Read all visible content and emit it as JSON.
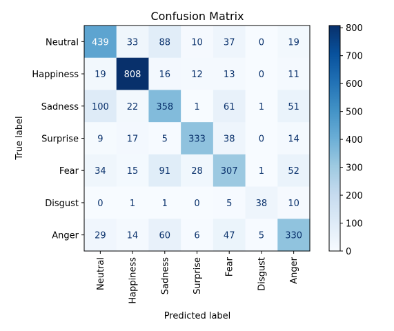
{
  "chart_data": {
    "type": "heatmap",
    "title": "Confusion Matrix",
    "xlabel": "Predicted label",
    "ylabel": "True label",
    "x_categories": [
      "Neutral",
      "Happiness",
      "Sadness",
      "Surprise",
      "Fear",
      "Disgust",
      "Anger"
    ],
    "y_categories": [
      "Neutral",
      "Happiness",
      "Sadness",
      "Surprise",
      "Fear",
      "Disgust",
      "Anger"
    ],
    "matrix": [
      [
        439,
        33,
        88,
        10,
        37,
        0,
        19
      ],
      [
        19,
        808,
        16,
        12,
        13,
        0,
        11
      ],
      [
        100,
        22,
        358,
        1,
        61,
        1,
        51
      ],
      [
        9,
        17,
        5,
        333,
        38,
        0,
        14
      ],
      [
        34,
        15,
        91,
        28,
        307,
        1,
        52
      ],
      [
        0,
        1,
        1,
        0,
        5,
        38,
        10
      ],
      [
        29,
        14,
        60,
        6,
        47,
        5,
        330
      ]
    ],
    "colormap": "Blues",
    "colorbar": {
      "min": 0,
      "max": 808,
      "ticks": [
        0,
        100,
        200,
        300,
        400,
        500,
        600,
        700,
        800
      ]
    },
    "grid": false
  }
}
